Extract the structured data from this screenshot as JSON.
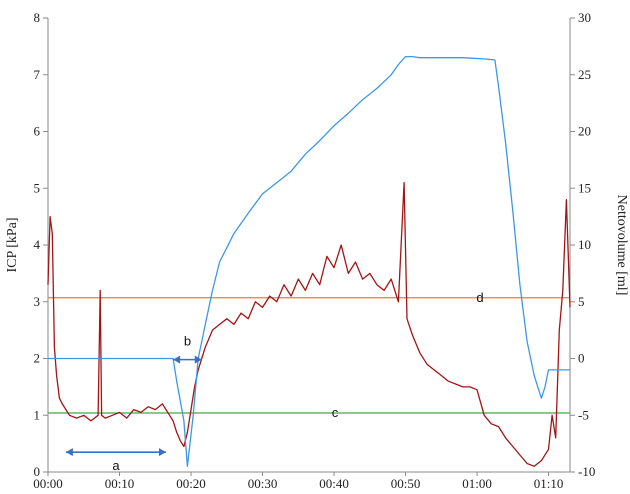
{
  "chart_data": {
    "type": "line",
    "title": "",
    "xlabel": "",
    "ylabel": "ICP [kPa]",
    "y2label": "Nettovolume [ml]",
    "x_ticks": [
      "00:00",
      "00:10",
      "00:20",
      "00:30",
      "00:40",
      "00:50",
      "01:00",
      "01:10"
    ],
    "x_range_min": [
      0,
      73
    ],
    "ylim": [
      0,
      8
    ],
    "y_ticks": [
      "0",
      "1",
      "2",
      "3",
      "4",
      "5",
      "6",
      "7",
      "8"
    ],
    "y2lim": [
      -10,
      30
    ],
    "y2_ticks": [
      "-10",
      "-5",
      "0",
      "5",
      "10",
      "15",
      "20",
      "25",
      "30"
    ],
    "grid": false,
    "series": [
      {
        "name": "",
        "axis": "left",
        "color": "#a31515",
        "description_values": "ICP",
        "x": [
          0,
          0.3,
          0.6,
          0.9,
          1.2,
          1.6,
          2.0,
          2.5,
          3,
          4,
          5,
          6,
          7,
          7.3,
          7.5,
          8,
          9,
          10,
          11,
          12,
          13,
          14,
          15,
          16,
          17,
          17.5,
          18,
          18.5,
          19,
          19.5,
          20,
          20.5,
          21,
          22,
          23,
          24,
          25,
          26,
          27,
          28,
          29,
          30,
          31,
          32,
          33,
          34,
          35,
          36,
          37,
          38,
          39,
          40,
          41,
          42,
          43,
          44,
          45,
          46,
          47,
          48,
          49,
          49.8,
          50.2,
          51,
          52,
          53,
          54,
          55,
          56,
          57,
          58,
          59,
          60,
          61,
          62,
          63,
          64,
          65,
          66,
          67,
          68,
          69,
          70,
          70.5,
          71,
          71.5,
          72,
          72.5,
          73
        ],
        "values": [
          3.3,
          4.5,
          4.2,
          2.2,
          1.7,
          1.3,
          1.2,
          1.1,
          1.0,
          0.95,
          1.0,
          0.9,
          1.0,
          3.2,
          1.0,
          0.95,
          1.0,
          1.05,
          0.95,
          1.1,
          1.05,
          1.15,
          1.1,
          1.2,
          1.0,
          0.9,
          0.7,
          0.55,
          0.45,
          0.7,
          1.1,
          1.5,
          1.8,
          2.2,
          2.5,
          2.6,
          2.7,
          2.6,
          2.8,
          2.7,
          3.0,
          2.9,
          3.1,
          3.0,
          3.3,
          3.1,
          3.4,
          3.2,
          3.5,
          3.3,
          3.8,
          3.6,
          4.0,
          3.5,
          3.7,
          3.4,
          3.5,
          3.3,
          3.2,
          3.4,
          3.0,
          5.1,
          2.7,
          2.4,
          2.1,
          1.9,
          1.8,
          1.7,
          1.6,
          1.55,
          1.5,
          1.5,
          1.45,
          1.0,
          0.85,
          0.8,
          0.6,
          0.45,
          0.3,
          0.15,
          0.1,
          0.2,
          0.4,
          1.0,
          0.6,
          2.5,
          3.2,
          4.8,
          2.9
        ]
      },
      {
        "name": "",
        "axis": "right",
        "color": "#3c98e6",
        "description_values": "Nettovolume",
        "x": [
          0,
          2,
          5,
          10,
          15,
          17.5,
          18,
          19,
          19.5,
          20.3,
          21,
          22,
          23,
          24,
          26,
          28,
          30,
          32,
          34,
          36,
          38,
          40,
          42,
          44,
          46,
          48,
          49,
          50,
          51,
          52,
          55,
          58,
          61,
          62.5,
          63,
          64,
          65,
          66,
          67,
          68,
          68.5,
          69,
          69.5,
          70,
          71,
          72,
          73
        ],
        "values": [
          0,
          0,
          0,
          0,
          0,
          0,
          -2,
          -5.5,
          -9.5,
          -5,
          0,
          3,
          6,
          8.5,
          11,
          12.8,
          14.5,
          15.5,
          16.5,
          18,
          19.2,
          20.5,
          21.6,
          22.8,
          23.8,
          25,
          25.9,
          26.6,
          26.6,
          26.5,
          26.5,
          26.5,
          26.4,
          26.3,
          24,
          19,
          13,
          6.5,
          1.5,
          -1.5,
          -2.5,
          -3.5,
          -2.5,
          -1,
          -1,
          -1,
          -1
        ]
      }
    ],
    "reference_lines": [
      {
        "label": "d",
        "axis": "left",
        "value": 3.07,
        "color": "#ed7d31"
      },
      {
        "label": "c",
        "axis": "left",
        "value": 1.04,
        "color": "#3fae3f"
      }
    ],
    "annotations": [
      {
        "label": "a",
        "type": "double-arrow",
        "x_from": 2.5,
        "x_to": 16.5,
        "y": 0.35,
        "axis": "left",
        "color": "#3b6fc4"
      },
      {
        "label": "b",
        "type": "double-arrow",
        "x_from": 17.5,
        "x_to": 21.5,
        "y": 1.98,
        "axis": "left",
        "color": "#3b6fc4"
      }
    ]
  }
}
